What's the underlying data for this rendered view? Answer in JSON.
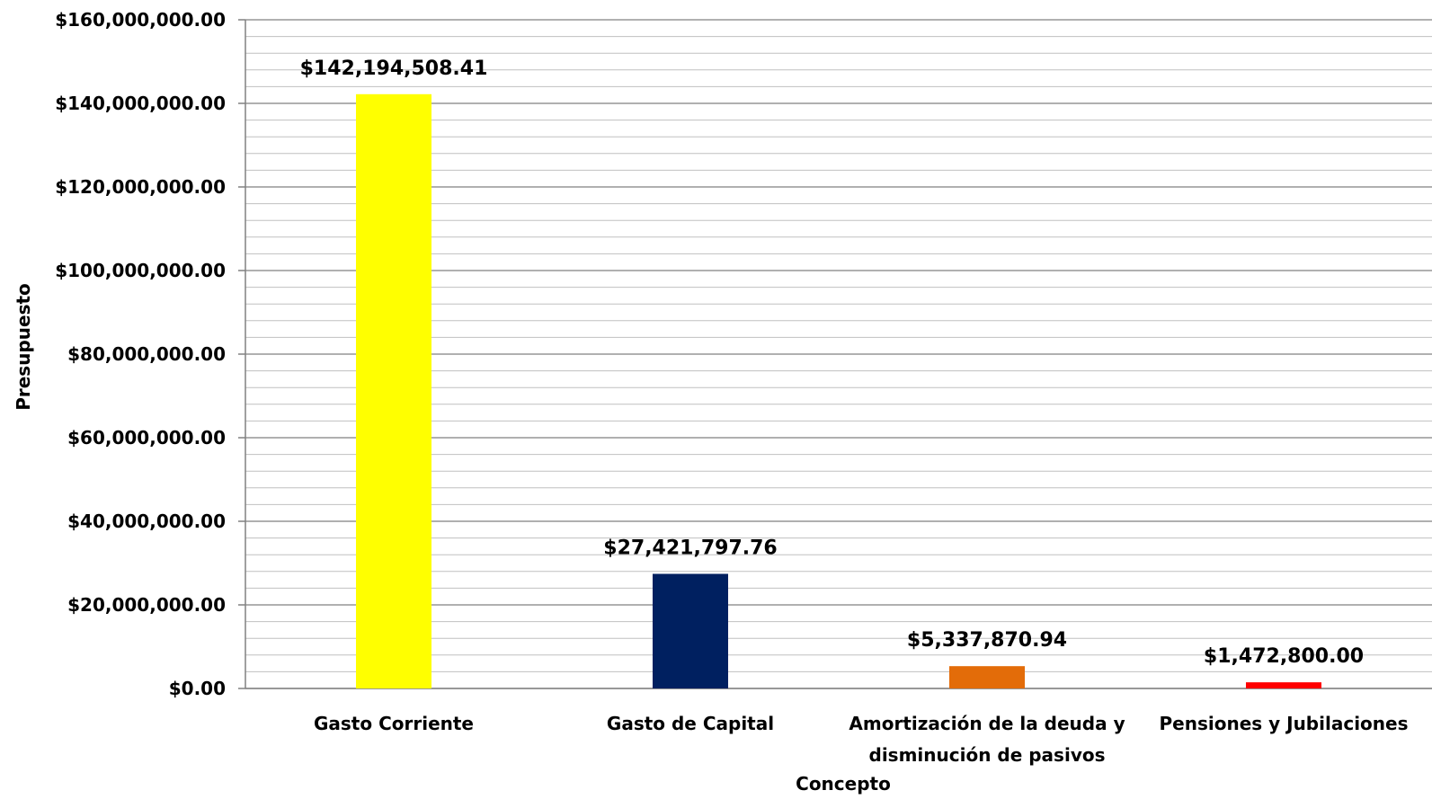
{
  "chart_data": {
    "type": "bar",
    "title": "",
    "xlabel": "Concepto",
    "ylabel": "Presupuesto",
    "ylim": [
      0,
      160000000
    ],
    "y_ticks": [
      0,
      20000000,
      40000000,
      60000000,
      80000000,
      100000000,
      120000000,
      140000000,
      160000000
    ],
    "y_tick_labels": [
      "$0.00",
      "$20,000,000.00",
      "$40,000,000.00",
      "$60,000,000.00",
      "$80,000,000.00",
      "$100,000,000.00",
      "$120,000,000.00",
      "$140,000,000.00",
      "$160,000,000.00"
    ],
    "grid": true,
    "legend": "none",
    "categories": [
      [
        "Gasto Corriente"
      ],
      [
        "Gasto de Capital"
      ],
      [
        "Amortización de la deuda y",
        "disminución de pasivos"
      ],
      [
        "Pensiones y Jubilaciones"
      ]
    ],
    "values": [
      142194508.41,
      27421797.76,
      5337870.94,
      1472800.0
    ],
    "data_labels": [
      "$142,194,508.41",
      "$27,421,797.76",
      "$5,337,870.94",
      "$1,472,800.00"
    ],
    "colors": [
      "#ffff00",
      "#002060",
      "#e36c09",
      "#ff0000"
    ]
  }
}
